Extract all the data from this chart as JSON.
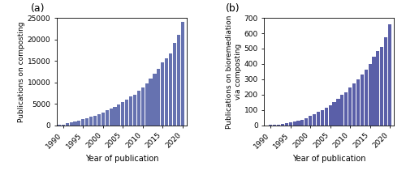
{
  "years": [
    1989,
    1990,
    1991,
    1992,
    1993,
    1994,
    1995,
    1996,
    1997,
    1998,
    1999,
    2000,
    2001,
    2002,
    2003,
    2004,
    2005,
    2006,
    2007,
    2008,
    2009,
    2010,
    2011,
    2012,
    2013,
    2014,
    2015,
    2016,
    2017,
    2018,
    2019,
    2020
  ],
  "composting": [
    80,
    200,
    420,
    640,
    890,
    1100,
    1380,
    1650,
    1950,
    2250,
    2600,
    3000,
    3450,
    3850,
    4300,
    4850,
    5400,
    5950,
    6650,
    7200,
    8000,
    8800,
    9800,
    10800,
    12100,
    13200,
    14600,
    15600,
    16700,
    19200,
    21100,
    24000
  ],
  "bioremediation": [
    1,
    2,
    3,
    5,
    8,
    12,
    17,
    23,
    30,
    38,
    48,
    60,
    72,
    87,
    100,
    115,
    133,
    152,
    175,
    200,
    215,
    245,
    275,
    298,
    330,
    362,
    400,
    447,
    482,
    510,
    575,
    660
  ],
  "bar_color_a": "#6672b0",
  "bar_color_b": "#5a5fa8",
  "ylabel_a": "Publications on composting",
  "ylabel_b": "Publications on bioremediation\nvia composting",
  "xlabel": "Year of publication",
  "ylim_a": [
    0,
    25000
  ],
  "ylim_b": [
    0,
    700
  ],
  "yticks_a": [
    0,
    5000,
    10000,
    15000,
    20000,
    25000
  ],
  "yticks_b": [
    0,
    100,
    200,
    300,
    400,
    500,
    600,
    700
  ],
  "xticks": [
    1990,
    1995,
    2000,
    2005,
    2010,
    2015,
    2020
  ],
  "label_a": "(a)",
  "label_b": "(b)"
}
